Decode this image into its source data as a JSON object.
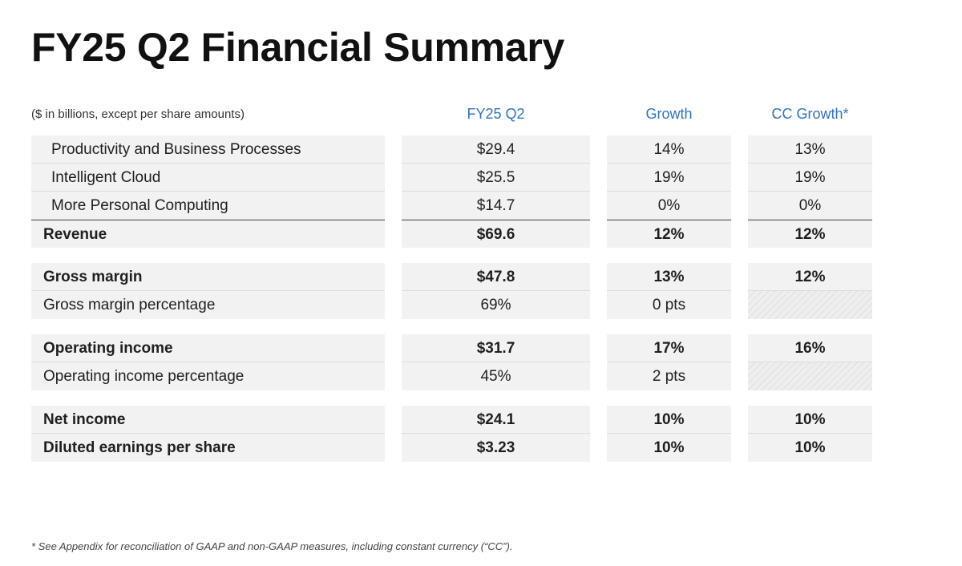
{
  "title": "FY25 Q2 Financial Summary",
  "units_note": "($ in billions, except per share amounts)",
  "columns": [
    "FY25 Q2",
    "Growth",
    "CC Growth*"
  ],
  "groups": [
    {
      "rows": [
        {
          "label": "Productivity and Business Processes",
          "value": "$29.4",
          "growth": "14%",
          "cc_growth": "13%"
        },
        {
          "label": "Intelligent Cloud",
          "value": "$25.5",
          "growth": "19%",
          "cc_growth": "19%"
        },
        {
          "label": "More Personal Computing",
          "value": "$14.7",
          "growth": "0%",
          "cc_growth": "0%"
        },
        {
          "label": "Revenue",
          "value": "$69.6",
          "growth": "12%",
          "cc_growth": "12%"
        }
      ]
    },
    {
      "rows": [
        {
          "label": "Gross margin",
          "value": "$47.8",
          "growth": "13%",
          "cc_growth": "12%"
        },
        {
          "label": "Gross margin percentage",
          "value": "69%",
          "growth": "0 pts",
          "cc_growth": ""
        }
      ]
    },
    {
      "rows": [
        {
          "label": "Operating income",
          "value": "$31.7",
          "growth": "17%",
          "cc_growth": "16%"
        },
        {
          "label": "Operating income percentage",
          "value": "45%",
          "growth": "2 pts",
          "cc_growth": ""
        }
      ]
    },
    {
      "rows": [
        {
          "label": "Net income",
          "value": "$24.1",
          "growth": "10%",
          "cc_growth": "10%"
        },
        {
          "label": "Diluted earnings per share",
          "value": "$3.23",
          "growth": "10%",
          "cc_growth": "10%"
        }
      ]
    }
  ],
  "footnote": "* See Appendix for reconciliation of GAAP and non-GAAP measures, including constant currency (“CC”)."
}
